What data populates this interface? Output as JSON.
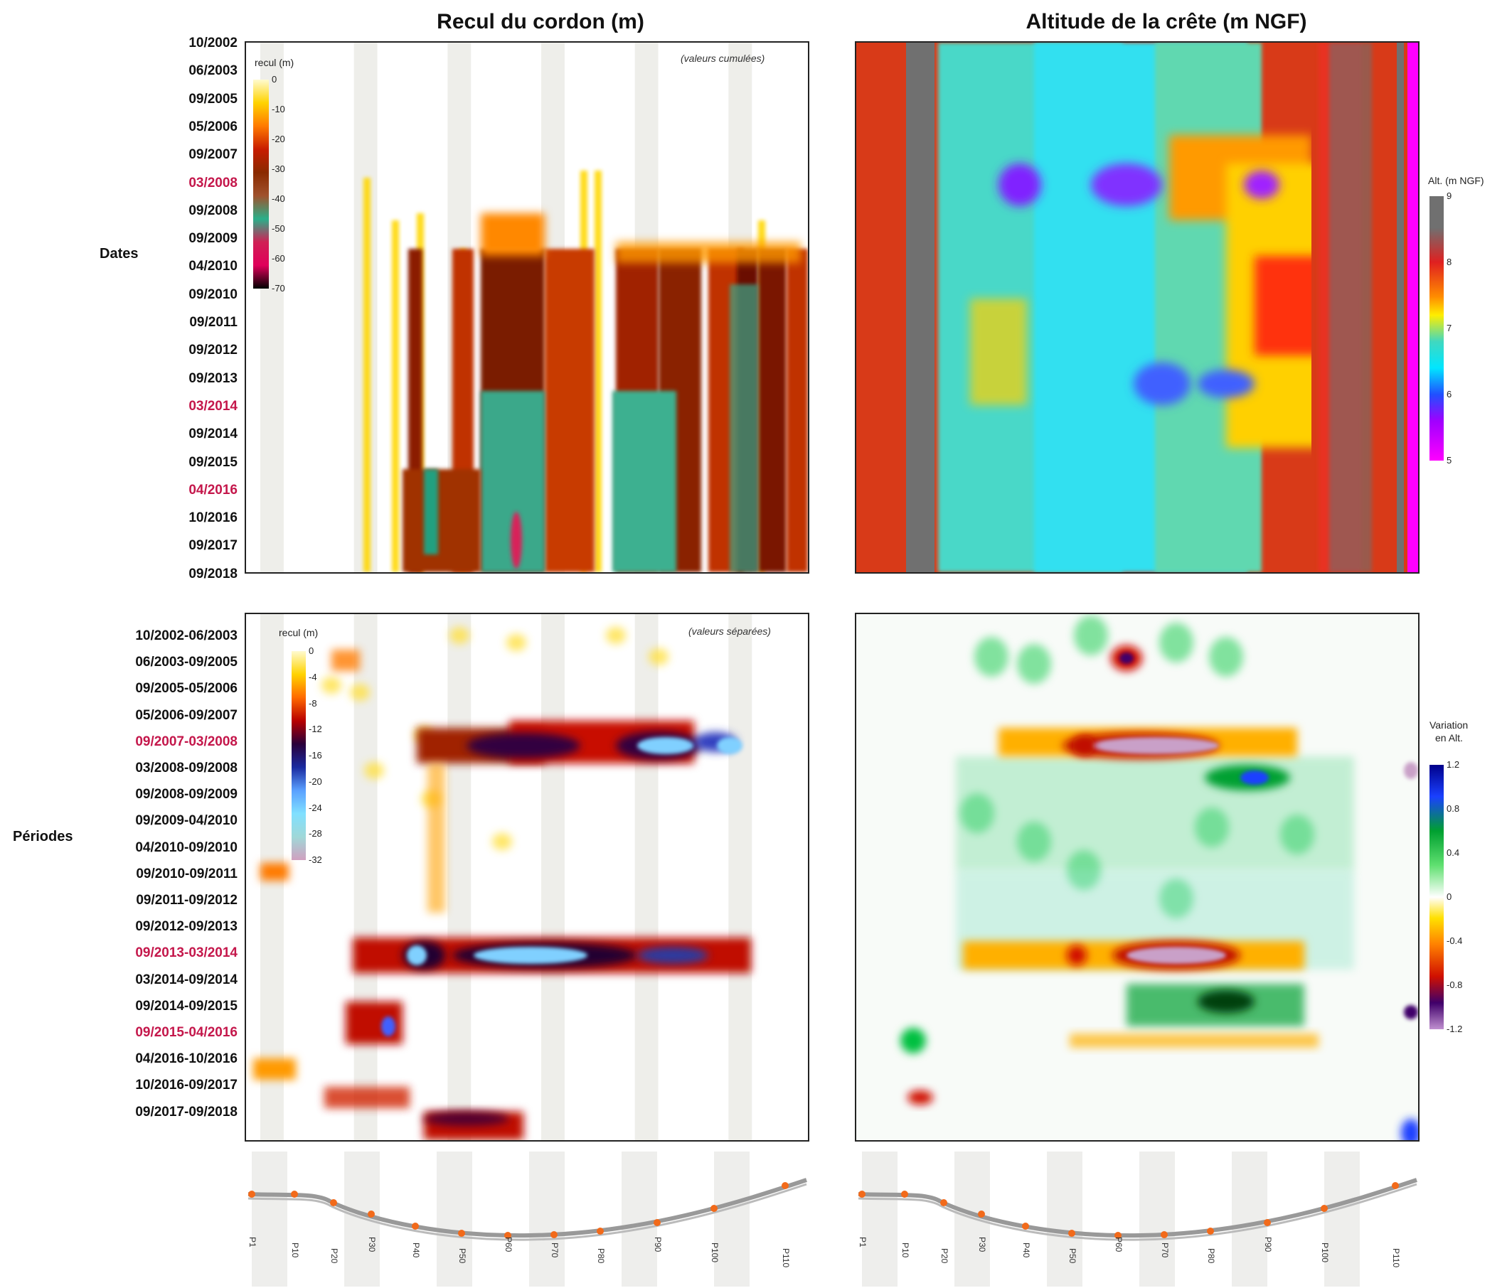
{
  "chart_data": [
    {
      "type": "heatmap",
      "title": "Recul du cordon (m)",
      "note": "(valeurs cumulées)",
      "ylabel": "Dates",
      "y": [
        "10/2002",
        "06/2003",
        "09/2005",
        "05/2006",
        "09/2007",
        "03/2008",
        "09/2008",
        "09/2009",
        "04/2010",
        "09/2010",
        "09/2011",
        "09/2012",
        "09/2013",
        "03/2014",
        "09/2014",
        "09/2015",
        "04/2016",
        "10/2016",
        "09/2017",
        "09/2018"
      ],
      "y_highlight": [
        "03/2008",
        "03/2014",
        "04/2016"
      ],
      "colorbar": {
        "title": "recul (m)",
        "ticks": [
          "0",
          "-10",
          "-20",
          "-30",
          "-40",
          "-50",
          "-60",
          "-70"
        ],
        "range": [
          -70,
          0
        ]
      }
    },
    {
      "type": "heatmap",
      "title": "Altitude de la crête (m NGF)",
      "y": [
        "10/2002",
        "06/2003",
        "09/2005",
        "05/2006",
        "09/2007",
        "03/2008",
        "09/2008",
        "09/2009",
        "04/2010",
        "09/2010",
        "09/2011",
        "09/2012",
        "09/2013",
        "03/2014",
        "09/2014",
        "09/2015",
        "04/2016",
        "10/2016",
        "09/2017",
        "09/2018"
      ],
      "colorbar": {
        "title": "Alt. (m NGF)",
        "ticks": [
          "9",
          "8",
          "7",
          "6",
          "5"
        ],
        "range": [
          5,
          9
        ]
      }
    },
    {
      "type": "heatmap",
      "note": "(valeurs séparées)",
      "ylabel": "Périodes",
      "y": [
        "10/2002-06/2003",
        "06/2003-09/2005",
        "09/2005-05/2006",
        "05/2006-09/2007",
        "09/2007-03/2008",
        "03/2008-09/2008",
        "09/2008-09/2009",
        "09/2009-04/2010",
        "04/2010-09/2010",
        "09/2010-09/2011",
        "09/2011-09/2012",
        "09/2012-09/2013",
        "09/2013-03/2014",
        "03/2014-09/2014",
        "09/2014-09/2015",
        "09/2015-04/2016",
        "04/2016-10/2016",
        "10/2016-09/2017",
        "09/2017-09/2018"
      ],
      "y_highlight": [
        "09/2007-03/2008",
        "09/2013-03/2014",
        "09/2015-04/2016"
      ],
      "colorbar": {
        "title": "recul (m)",
        "ticks": [
          "0",
          "-4",
          "-8",
          "-12",
          "-16",
          "-20",
          "-24",
          "-28",
          "-32"
        ],
        "range": [
          -32,
          0
        ]
      }
    },
    {
      "type": "heatmap",
      "colorbar": {
        "title_line1": "Variation",
        "title_line2": "en Alt.",
        "ticks": [
          "1.2",
          "0.8",
          "0.4",
          "0",
          "-0.4",
          "-0.8",
          "-1.2"
        ],
        "range": [
          -1.2,
          1.2
        ]
      }
    }
  ],
  "profile_labels": [
    "P1",
    "P10",
    "P20",
    "P30",
    "P40",
    "P50",
    "P60",
    "P70",
    "P80",
    "P90",
    "P100",
    "P110"
  ],
  "colors": {
    "highlight": "#c4174b",
    "frame": "#222222"
  }
}
